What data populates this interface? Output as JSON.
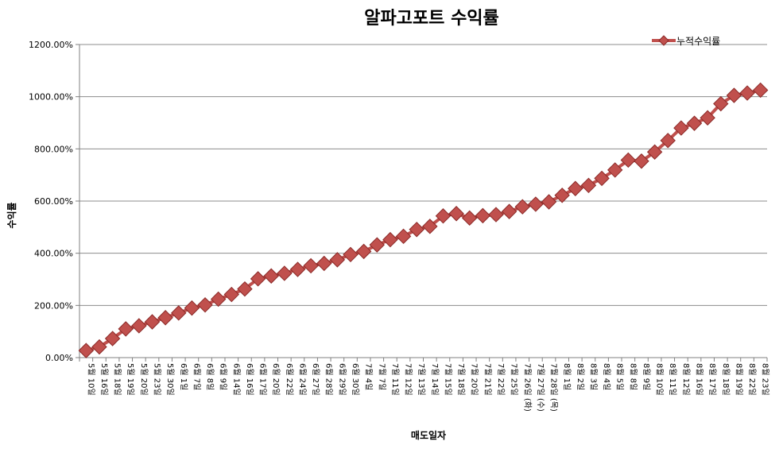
{
  "chart_data": {
    "type": "line",
    "title": "알파고포트 수익률",
    "xlabel": "매도일자",
    "ylabel": "수익률",
    "ylim": [
      0,
      12
    ],
    "ytick_labels": [
      "0.00%",
      "200.00%",
      "400.00%",
      "600.00%",
      "800.00%",
      "1000.00%",
      "1200.00%"
    ],
    "grid": true,
    "legend_position": "top-right",
    "marker": "diamond",
    "colors": {
      "series": "#c0504d",
      "marker_edge": "#8b2a28",
      "grid": "#8c8c8c",
      "axis": "#808080"
    },
    "categories": [
      "5월 10일",
      "5월 16일",
      "5월 18일",
      "5월 19일",
      "5월 20일",
      "5월 23일",
      "5월 30일",
      "6월 1일",
      "6월 7일",
      "6월 8일",
      "6월 9일",
      "6월 14일",
      "6월 16일",
      "6월 17일",
      "6월 20일",
      "6월 22일",
      "6월 24일",
      "6월 27일",
      "6월 28일",
      "6월 29일",
      "6월 30일",
      "7월 4일",
      "7월 7일",
      "7월 11일",
      "7월 12일",
      "7월 13일",
      "7월 14일",
      "7월 15일",
      "7월 18일",
      "7월 20일",
      "7월 21일",
      "7월 22일",
      "7월 25일",
      "7월 26일 (화)",
      "7월 27일 (수)",
      "7월 28일 (목)",
      "8월 1일",
      "8월 2일",
      "8월 3일",
      "8월 4일",
      "8월 5일",
      "8월 8일",
      "8월 9일",
      "8월 10일",
      "8월 11일",
      "8월 12일",
      "8월 16일",
      "8월 17일",
      "8월 18일",
      "8월 19일",
      "8월 22일",
      "8월 23일"
    ],
    "series": [
      {
        "name": "누적수익률",
        "values": [
          0.27,
          0.41,
          0.73,
          1.1,
          1.22,
          1.37,
          1.53,
          1.71,
          1.9,
          2.02,
          2.24,
          2.42,
          2.63,
          3.02,
          3.13,
          3.23,
          3.38,
          3.52,
          3.61,
          3.75,
          3.95,
          4.07,
          4.32,
          4.52,
          4.65,
          4.91,
          5.03,
          5.43,
          5.52,
          5.35,
          5.44,
          5.48,
          5.6,
          5.78,
          5.88,
          5.97,
          6.22,
          6.48,
          6.6,
          6.87,
          7.19,
          7.57,
          7.53,
          7.88,
          8.32,
          8.8,
          8.98,
          9.19,
          9.73,
          10.05,
          10.14,
          10.25
        ]
      }
    ]
  }
}
